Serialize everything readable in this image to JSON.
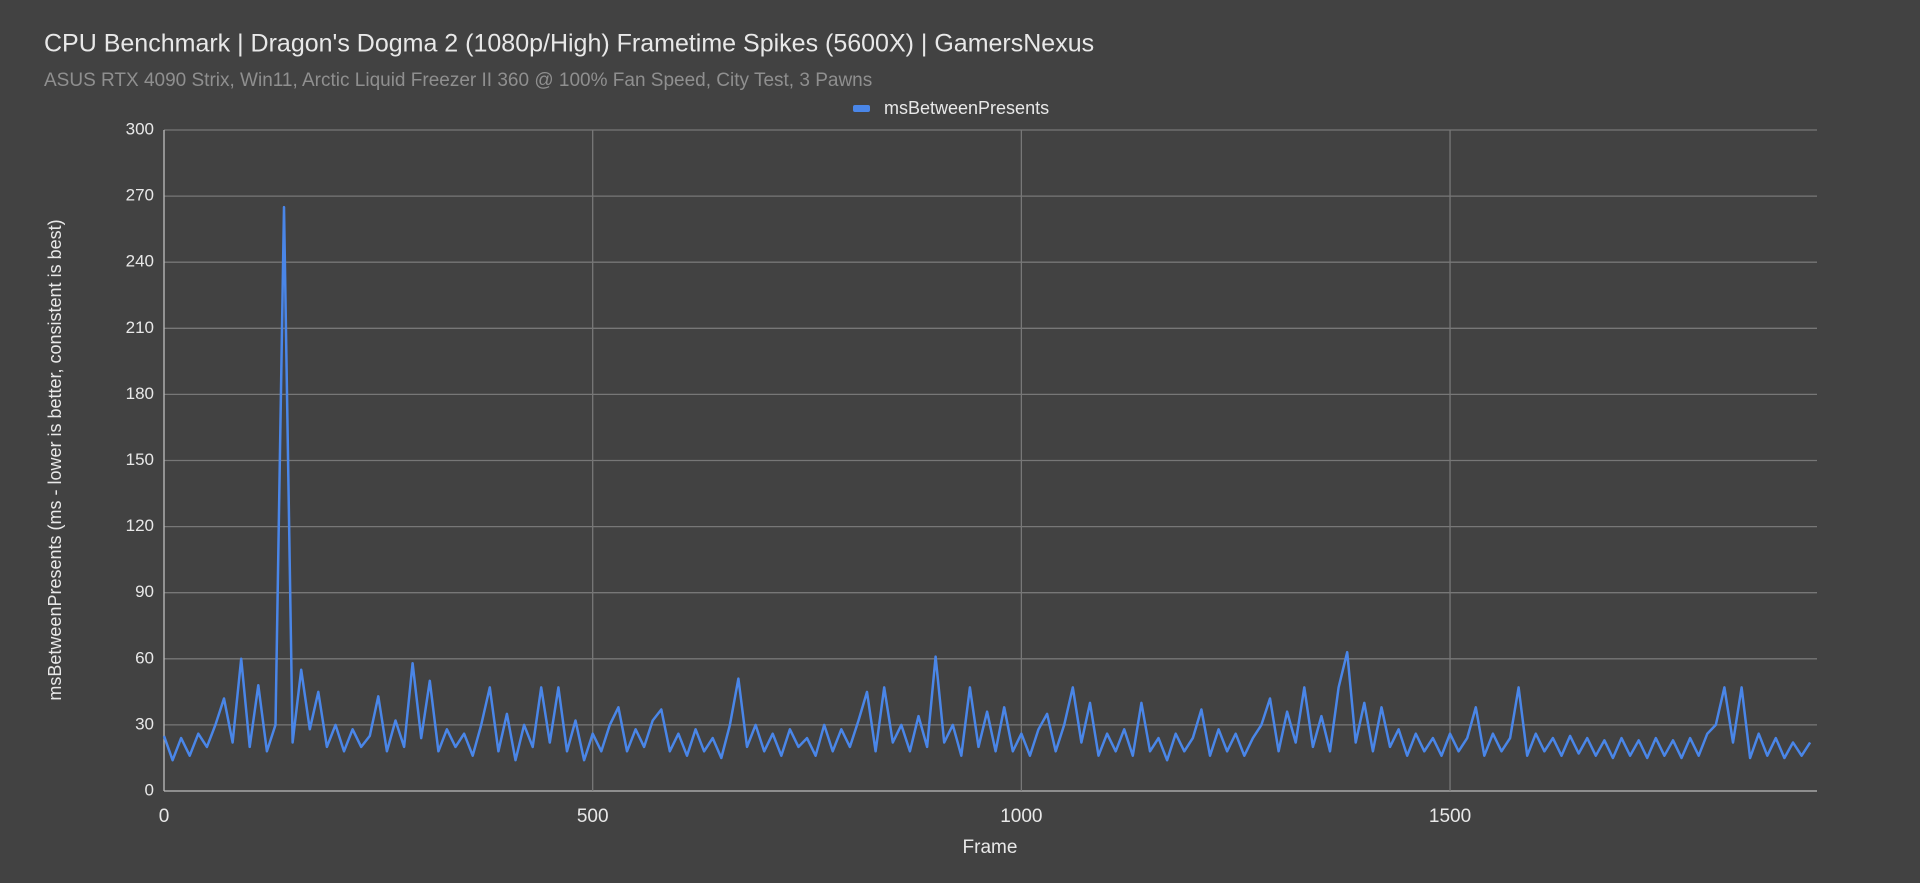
{
  "chart_data": {
    "type": "line",
    "title": "CPU Benchmark | Dragon's Dogma 2 (1080p/High) Frametime Spikes (5600X) | GamersNexus",
    "subtitle": "ASUS RTX 4090 Strix, Win11, Arctic Liquid Freezer II 360 @ 100% Fan Speed, City Test, 3 Pawns",
    "x_label": "Frame",
    "y_label": "msBetweenPresents (ms - lower is better, consistent is best)",
    "xlim": [
      0,
      1928
    ],
    "xticks": [
      0,
      500,
      1000,
      1500
    ],
    "ylim": [
      0,
      300
    ],
    "yticks": [
      0,
      30,
      60,
      90,
      120,
      150,
      180,
      210,
      240,
      270,
      300
    ],
    "grid": true,
    "legend": "top",
    "x": [
      0,
      10,
      20,
      30,
      40,
      50,
      60,
      70,
      80,
      90,
      100,
      110,
      120,
      130,
      140,
      150,
      160,
      170,
      180,
      190,
      200,
      210,
      220,
      230,
      240,
      250,
      260,
      270,
      280,
      290,
      300,
      310,
      320,
      330,
      340,
      350,
      360,
      370,
      380,
      390,
      400,
      410,
      420,
      430,
      440,
      450,
      460,
      470,
      480,
      490,
      500,
      510,
      520,
      530,
      540,
      550,
      560,
      570,
      580,
      590,
      600,
      610,
      620,
      630,
      640,
      650,
      660,
      670,
      680,
      690,
      700,
      710,
      720,
      730,
      740,
      750,
      760,
      770,
      780,
      790,
      800,
      810,
      820,
      830,
      840,
      850,
      860,
      870,
      880,
      890,
      900,
      910,
      920,
      930,
      940,
      950,
      960,
      970,
      980,
      990,
      1000,
      1010,
      1020,
      1030,
      1040,
      1050,
      1060,
      1070,
      1080,
      1090,
      1100,
      1110,
      1120,
      1130,
      1140,
      1150,
      1160,
      1170,
      1180,
      1190,
      1200,
      1210,
      1220,
      1230,
      1240,
      1250,
      1260,
      1270,
      1280,
      1290,
      1300,
      1310,
      1320,
      1330,
      1340,
      1350,
      1360,
      1370,
      1380,
      1390,
      1400,
      1410,
      1420,
      1430,
      1440,
      1450,
      1460,
      1470,
      1480,
      1490,
      1500,
      1510,
      1520,
      1530,
      1540,
      1550,
      1560,
      1570,
      1580,
      1590,
      1600,
      1610,
      1620,
      1630,
      1640,
      1650,
      1660,
      1670,
      1680,
      1690,
      1700,
      1710,
      1720,
      1730,
      1740,
      1750,
      1760,
      1770,
      1780,
      1790,
      1800,
      1810,
      1820,
      1830,
      1840,
      1850,
      1860,
      1870,
      1880,
      1890,
      1900,
      1910,
      1920
    ],
    "series": [
      {
        "name": "msBetweenPresents",
        "color": "#4a86e8",
        "values": [
          25,
          14,
          24,
          16,
          26,
          20,
          30,
          42,
          22,
          60,
          20,
          48,
          18,
          30,
          265,
          22,
          55,
          28,
          45,
          20,
          30,
          18,
          28,
          20,
          25,
          43,
          18,
          32,
          20,
          58,
          24,
          50,
          18,
          28,
          20,
          26,
          16,
          30,
          47,
          18,
          35,
          14,
          30,
          20,
          47,
          22,
          47,
          18,
          32,
          14,
          26,
          18,
          30,
          38,
          18,
          28,
          20,
          32,
          37,
          18,
          26,
          16,
          28,
          18,
          24,
          15,
          30,
          51,
          20,
          30,
          18,
          26,
          16,
          28,
          20,
          24,
          16,
          30,
          18,
          28,
          20,
          32,
          45,
          18,
          47,
          22,
          30,
          18,
          34,
          20,
          61,
          22,
          30,
          16,
          47,
          20,
          36,
          18,
          38,
          18,
          26,
          16,
          28,
          35,
          18,
          30,
          47,
          22,
          40,
          16,
          26,
          18,
          28,
          16,
          40,
          18,
          24,
          14,
          26,
          18,
          24,
          37,
          16,
          28,
          18,
          26,
          16,
          24,
          30,
          42,
          18,
          36,
          22,
          47,
          20,
          34,
          18,
          47,
          63,
          22,
          40,
          18,
          38,
          20,
          28,
          16,
          26,
          18,
          24,
          16,
          26,
          18,
          24,
          38,
          16,
          26,
          18,
          24,
          47,
          16,
          26,
          18,
          24,
          16,
          25,
          17,
          24,
          16,
          23,
          15,
          24,
          16,
          23,
          15,
          24,
          16,
          23,
          15,
          24,
          16,
          26,
          30,
          47,
          22,
          47,
          15,
          26,
          16,
          24,
          15,
          22,
          16,
          22
        ]
      }
    ]
  }
}
